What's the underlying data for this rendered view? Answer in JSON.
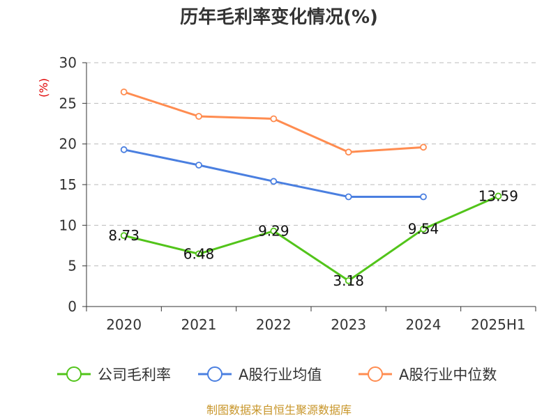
{
  "chart_data": {
    "type": "line",
    "title": "历年毛利率变化情况(%)",
    "ylabel": "(%)",
    "xlabel": "",
    "categories": [
      "2020",
      "2021",
      "2022",
      "2023",
      "2024",
      "2025H1"
    ],
    "ylim": [
      0,
      30
    ],
    "yticks": [
      0,
      5,
      10,
      15,
      20,
      25,
      30
    ],
    "grid": true,
    "legend_position": "bottom",
    "series": [
      {
        "name": "公司毛利率",
        "color": "#52c41a",
        "values": [
          8.73,
          6.48,
          9.29,
          3.18,
          9.54,
          13.59
        ],
        "labels": [
          "8.73",
          "6.48",
          "9.29",
          "3.18",
          "9.54",
          "13.59"
        ]
      },
      {
        "name": "A股行业均值",
        "color": "#4a7fe0",
        "values": [
          19.3,
          17.4,
          15.4,
          13.5,
          13.5,
          null
        ]
      },
      {
        "name": "A股行业中位数",
        "color": "#ff8c50",
        "values": [
          26.4,
          23.4,
          23.1,
          19.0,
          19.6,
          null
        ]
      }
    ],
    "source": "制图数据来自恒生聚源数据库"
  }
}
